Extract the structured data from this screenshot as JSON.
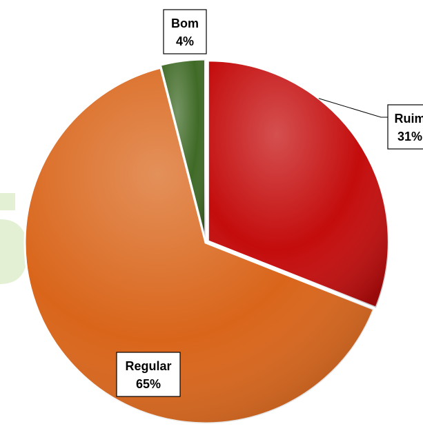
{
  "chart_data": {
    "type": "pie",
    "title": "",
    "legend": "none",
    "slices": [
      {
        "label": "Bom",
        "value": 4,
        "value_label": "4%",
        "color": "#3f6a26"
      },
      {
        "label": "Ruim",
        "value": 31,
        "value_label": "31%",
        "color": "#c40c0c"
      },
      {
        "label": "Regular",
        "value": 65,
        "value_label": "65%",
        "color": "#d9651a"
      }
    ]
  },
  "watermark": {
    "color": "#e4f0d4"
  }
}
